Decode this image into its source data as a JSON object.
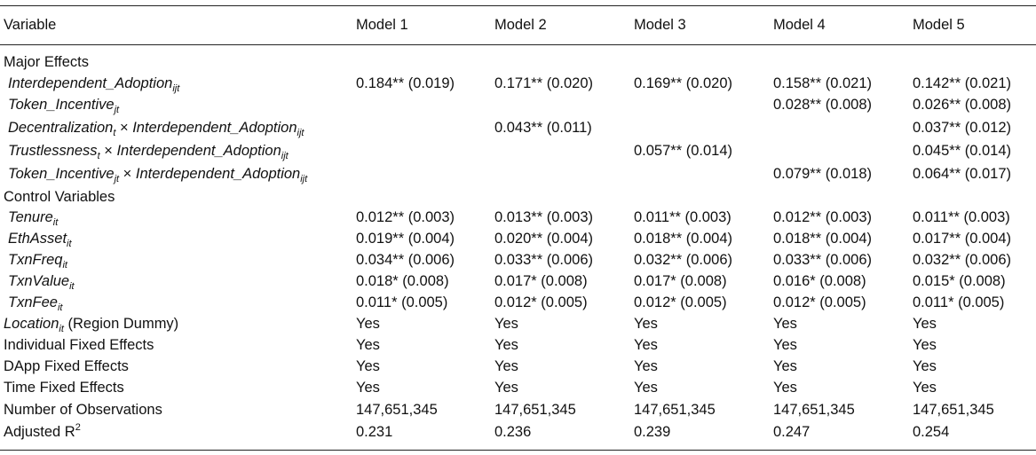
{
  "header": {
    "variable": "Variable",
    "models": [
      "Model 1",
      "Model 2",
      "Model 3",
      "Model 4",
      "Model 5"
    ]
  },
  "sections": {
    "major": "Major Effects",
    "control": "Control Variables"
  },
  "var_names": {
    "interdependent": "Interdependent_Adoption",
    "token": "Token_Incentive",
    "decentralization": "Decentralization",
    "trustlessness": "Trustlessness",
    "tenure": "Tenure",
    "ethasset": "EthAsset",
    "txnfreq": "TxnFreq",
    "txnvalue": "TxnValue",
    "txnfee": "TxnFee",
    "location": "Location",
    "location_note": "(Region Dummy)",
    "individual_fe": "Individual Fixed Effects",
    "dapp_fe": "DApp Fixed Effects",
    "time_fe": "Time Fixed Effects",
    "n_obs": "Number of Observations",
    "adj_r2": "Adjusted R",
    "adj_r2_exp": "2"
  },
  "subscripts": {
    "ijt": "ijt",
    "jt": "jt",
    "t": "t",
    "it": "it"
  },
  "symbols": {
    "times": "×"
  },
  "values": {
    "interdependent": [
      "0.184** (0.019)",
      "0.171** (0.020)",
      "0.169** (0.020)",
      "0.158** (0.021)",
      "0.142** (0.021)"
    ],
    "token": [
      "",
      "",
      "",
      "0.028** (0.008)",
      "0.026** (0.008)"
    ],
    "decentralization_x": [
      "",
      "0.043** (0.011)",
      "",
      "",
      "0.037** (0.012)"
    ],
    "trustlessness_x": [
      "",
      "",
      "0.057** (0.014)",
      "",
      "0.045** (0.014)"
    ],
    "token_x": [
      "",
      "",
      "",
      "0.079** (0.018)",
      "0.064** (0.017)"
    ],
    "tenure": [
      "0.012** (0.003)",
      "0.013** (0.003)",
      "0.011** (0.003)",
      "0.012** (0.003)",
      "0.011** (0.003)"
    ],
    "ethasset": [
      "0.019** (0.004)",
      "0.020** (0.004)",
      "0.018** (0.004)",
      "0.018** (0.004)",
      "0.017** (0.004)"
    ],
    "txnfreq": [
      "0.034** (0.006)",
      "0.033** (0.006)",
      "0.032** (0.006)",
      "0.033** (0.006)",
      "0.032** (0.006)"
    ],
    "txnvalue": [
      "0.018* (0.008)",
      "0.017* (0.008)",
      "0.017* (0.008)",
      "0.016* (0.008)",
      "0.015* (0.008)"
    ],
    "txnfee": [
      "0.011* (0.005)",
      "0.012* (0.005)",
      "0.012* (0.005)",
      "0.012* (0.005)",
      "0.011* (0.005)"
    ],
    "location": [
      "Yes",
      "Yes",
      "Yes",
      "Yes",
      "Yes"
    ],
    "individual_fe": [
      "Yes",
      "Yes",
      "Yes",
      "Yes",
      "Yes"
    ],
    "dapp_fe": [
      "Yes",
      "Yes",
      "Yes",
      "Yes",
      "Yes"
    ],
    "time_fe": [
      "Yes",
      "Yes",
      "Yes",
      "Yes",
      "Yes"
    ],
    "n_obs": [
      "147,651,345",
      "147,651,345",
      "147,651,345",
      "147,651,345",
      "147,651,345"
    ],
    "adj_r2": [
      "0.231",
      "0.236",
      "0.239",
      "0.247",
      "0.254"
    ]
  }
}
